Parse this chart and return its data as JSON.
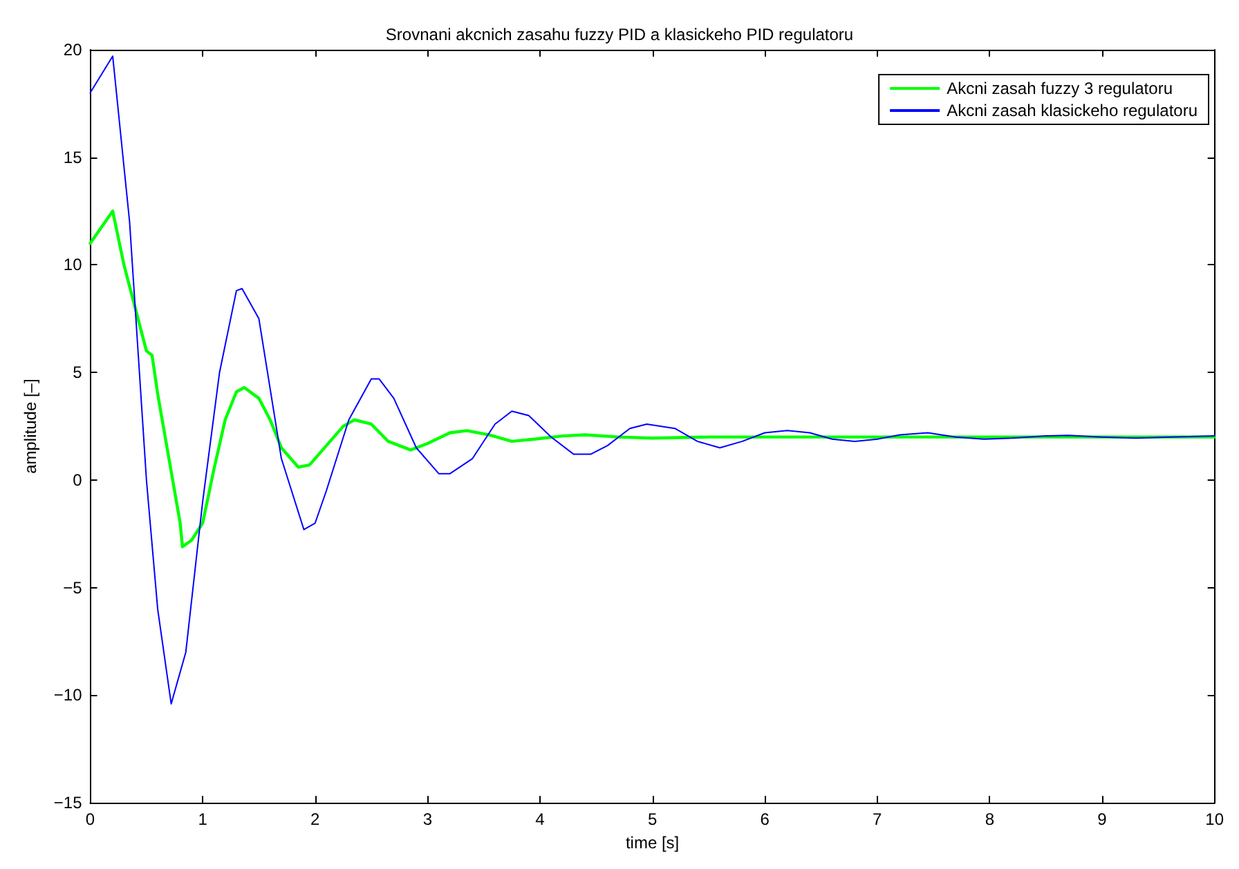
{
  "chart_data": {
    "type": "line",
    "title": "Srovnani akcnich zasahu fuzzy PID a klasickeho PID regulatoru",
    "xlabel": "time [s]",
    "ylabel": "amplitude [–]",
    "xlim": [
      0,
      10
    ],
    "ylim": [
      -15,
      20
    ],
    "xticks": [
      0,
      1,
      2,
      3,
      4,
      5,
      6,
      7,
      8,
      9,
      10
    ],
    "yticks": [
      -15,
      -10,
      -5,
      0,
      5,
      10,
      15,
      20
    ],
    "grid": false,
    "legend": "top right",
    "marker": "none",
    "line_style": "solid",
    "series": [
      {
        "name": "Akcni zasah fuzzy 3 regulatoru",
        "color": "#00ff00",
        "x": [
          0,
          0.2,
          0.3,
          0.4,
          0.5,
          0.55,
          0.6,
          0.7,
          0.8,
          0.82,
          0.9,
          1.0,
          1.1,
          1.2,
          1.3,
          1.37,
          1.5,
          1.6,
          1.7,
          1.85,
          1.95,
          2.1,
          2.25,
          2.35,
          2.5,
          2.65,
          2.85,
          3.0,
          3.2,
          3.35,
          3.55,
          3.75,
          3.95,
          4.2,
          4.4,
          4.7,
          5.0,
          5.5,
          6,
          7,
          8,
          9,
          10
        ],
        "values": [
          11,
          12.5,
          10,
          8,
          6,
          5.8,
          4,
          1,
          -2,
          -3.1,
          -2.8,
          -2,
          0.5,
          2.8,
          4.1,
          4.3,
          3.8,
          2.8,
          1.5,
          0.6,
          0.7,
          1.6,
          2.5,
          2.8,
          2.6,
          1.8,
          1.4,
          1.7,
          2.2,
          2.3,
          2.1,
          1.8,
          1.9,
          2.05,
          2.1,
          2.0,
          1.95,
          2.0,
          2.0,
          2.0,
          2.0,
          2.0,
          2.0
        ]
      },
      {
        "name": "Akcni zasah klasickeho regulatoru",
        "color": "#0000ff",
        "x": [
          0,
          0.2,
          0.35,
          0.5,
          0.6,
          0.72,
          0.85,
          1.0,
          1.15,
          1.3,
          1.35,
          1.5,
          1.7,
          1.9,
          2.0,
          2.1,
          2.3,
          2.5,
          2.57,
          2.7,
          2.9,
          3.1,
          3.2,
          3.4,
          3.6,
          3.75,
          3.9,
          4.1,
          4.3,
          4.45,
          4.6,
          4.8,
          4.95,
          5.2,
          5.4,
          5.6,
          5.8,
          6.0,
          6.2,
          6.4,
          6.6,
          6.8,
          7.0,
          7.2,
          7.45,
          7.7,
          7.95,
          8.2,
          8.5,
          8.7,
          9.0,
          9.3,
          9.6,
          10
        ],
        "values": [
          18,
          19.7,
          12,
          0,
          -6,
          -10.4,
          -8,
          -1,
          5,
          8.8,
          8.9,
          7.5,
          1,
          -2.3,
          -2,
          -0.5,
          2.8,
          4.7,
          4.7,
          3.8,
          1.5,
          0.3,
          0.3,
          1,
          2.6,
          3.2,
          3.0,
          2,
          1.2,
          1.2,
          1.6,
          2.4,
          2.6,
          2.4,
          1.8,
          1.5,
          1.8,
          2.2,
          2.3,
          2.2,
          1.9,
          1.8,
          1.9,
          2.1,
          2.2,
          2.0,
          1.9,
          1.95,
          2.05,
          2.08,
          2.0,
          1.95,
          2.0,
          2.05
        ]
      }
    ]
  }
}
